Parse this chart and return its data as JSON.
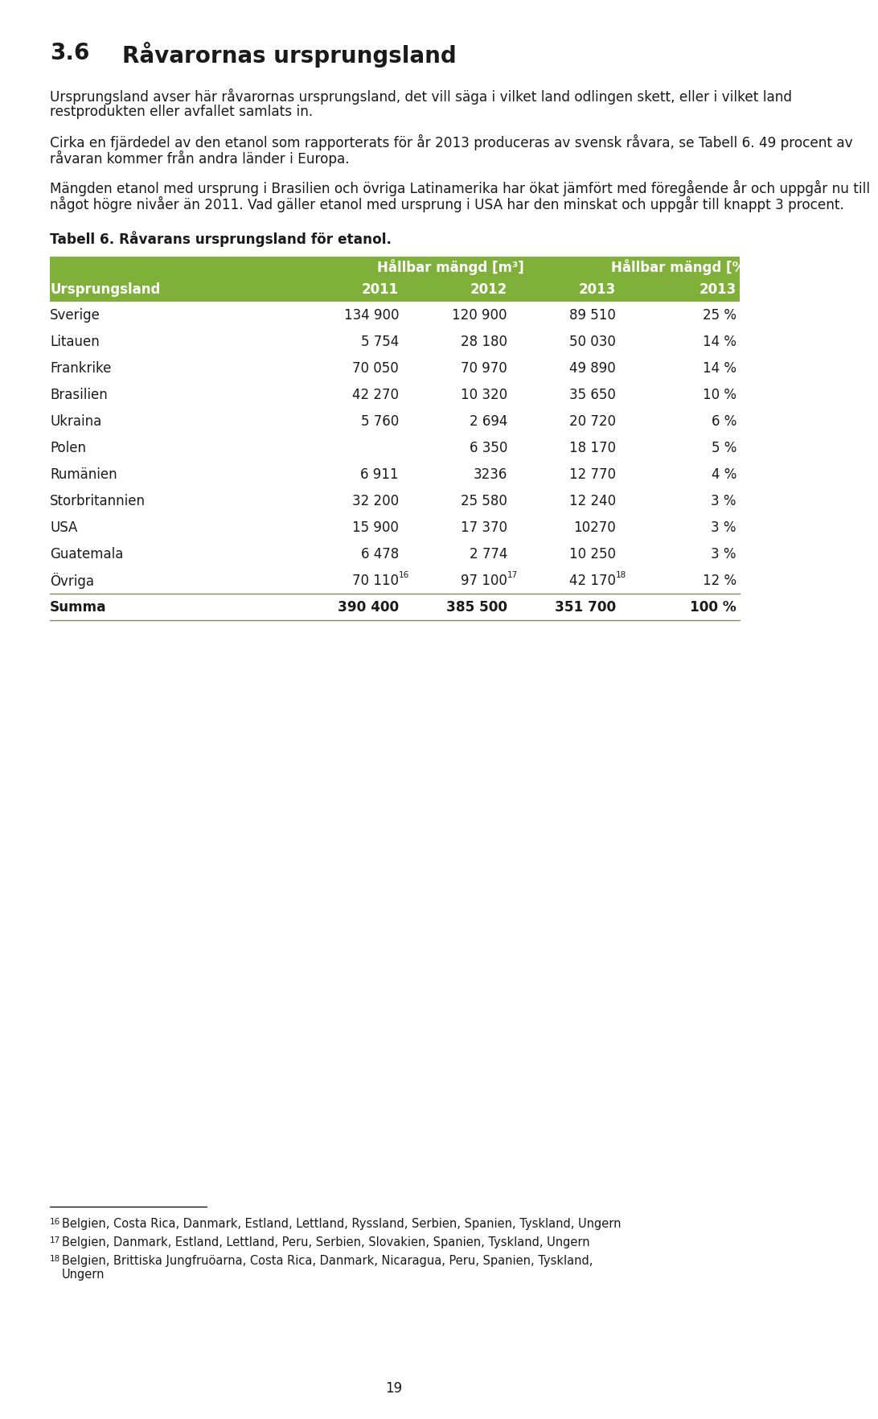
{
  "section_number": "3.6",
  "section_title": "Råvarornas ursprungsland",
  "paragraph1": "Ursprungsland avser här råvarornas ursprungsland, det vill säga i vilket land odlingen skett, eller i vilket land restprodukten eller avfallet samlats in.",
  "paragraph2": "Cirka en fjärdedel av den etanol som rapporterats för år 2013 produceras av svensk råvara, se Tabell 6. 49 procent av råvaran kommer från andra länder i Europa.",
  "paragraph3": "Mängden etanol med ursprung i Brasilien och övriga Latinamerika har ökat jämfört med föregående år och uppgår nu till något högre nivåer än 2011. Vad gäller etanol med ursprung i USA har den minskat och uppgår till knappt 3 procent.",
  "table_caption": "Tabell 6. Råvarans ursprungsland för etanol.",
  "header_bg_color": "#7fb03a",
  "header_text_color": "#ffffff",
  "rows": [
    [
      "Sverige",
      "134 900",
      "120 900",
      "89 510",
      "25 %"
    ],
    [
      "Litauen",
      "5 754",
      "28 180",
      "50 030",
      "14 %"
    ],
    [
      "Frankrike",
      "70 050",
      "70 970",
      "49 890",
      "14 %"
    ],
    [
      "Brasilien",
      "42 270",
      "10 320",
      "35 650",
      "10 %"
    ],
    [
      "Ukraina",
      "5 760",
      "2 694",
      "20 720",
      "6 %"
    ],
    [
      "Polen",
      "",
      "6 350",
      "18 170",
      "5 %"
    ],
    [
      "Rumänien",
      "6 911",
      "3236",
      "12 770",
      "4 %"
    ],
    [
      "Storbritannien",
      "32 200",
      "25 580",
      "12 240",
      "3 %"
    ],
    [
      "USA",
      "15 900",
      "17 370",
      "10270",
      "3 %"
    ],
    [
      "Guatemala",
      "6 478",
      "2 774",
      "10 250",
      "3 %"
    ],
    [
      "Övriga",
      "70 110",
      "97 100",
      "42 170",
      "12 %"
    ]
  ],
  "ovriga_sups": [
    "16",
    "17",
    "18"
  ],
  "summa_row": [
    "Summa",
    "390 400",
    "385 500",
    "351 700",
    "100 %"
  ],
  "footnote16": "Belgien, Costa Rica, Danmark, Estland, Lettland, Ryssland, Serbien, Spanien, Tyskland, Ungern",
  "footnote17": "Belgien, Danmark, Estland, Lettland, Peru, Serbien, Slovakien, Spanien, Tyskland, Ungern",
  "footnote18": "Belgien, Brittiska Jungfruöarna, Costa Rica, Danmark, Nicaragua, Peru, Spanien, Tyskland,\nUngern",
  "page_number": "19",
  "line_color": "#8b8b6b",
  "bg_color": "#ffffff",
  "text_color": "#1a1a1a"
}
